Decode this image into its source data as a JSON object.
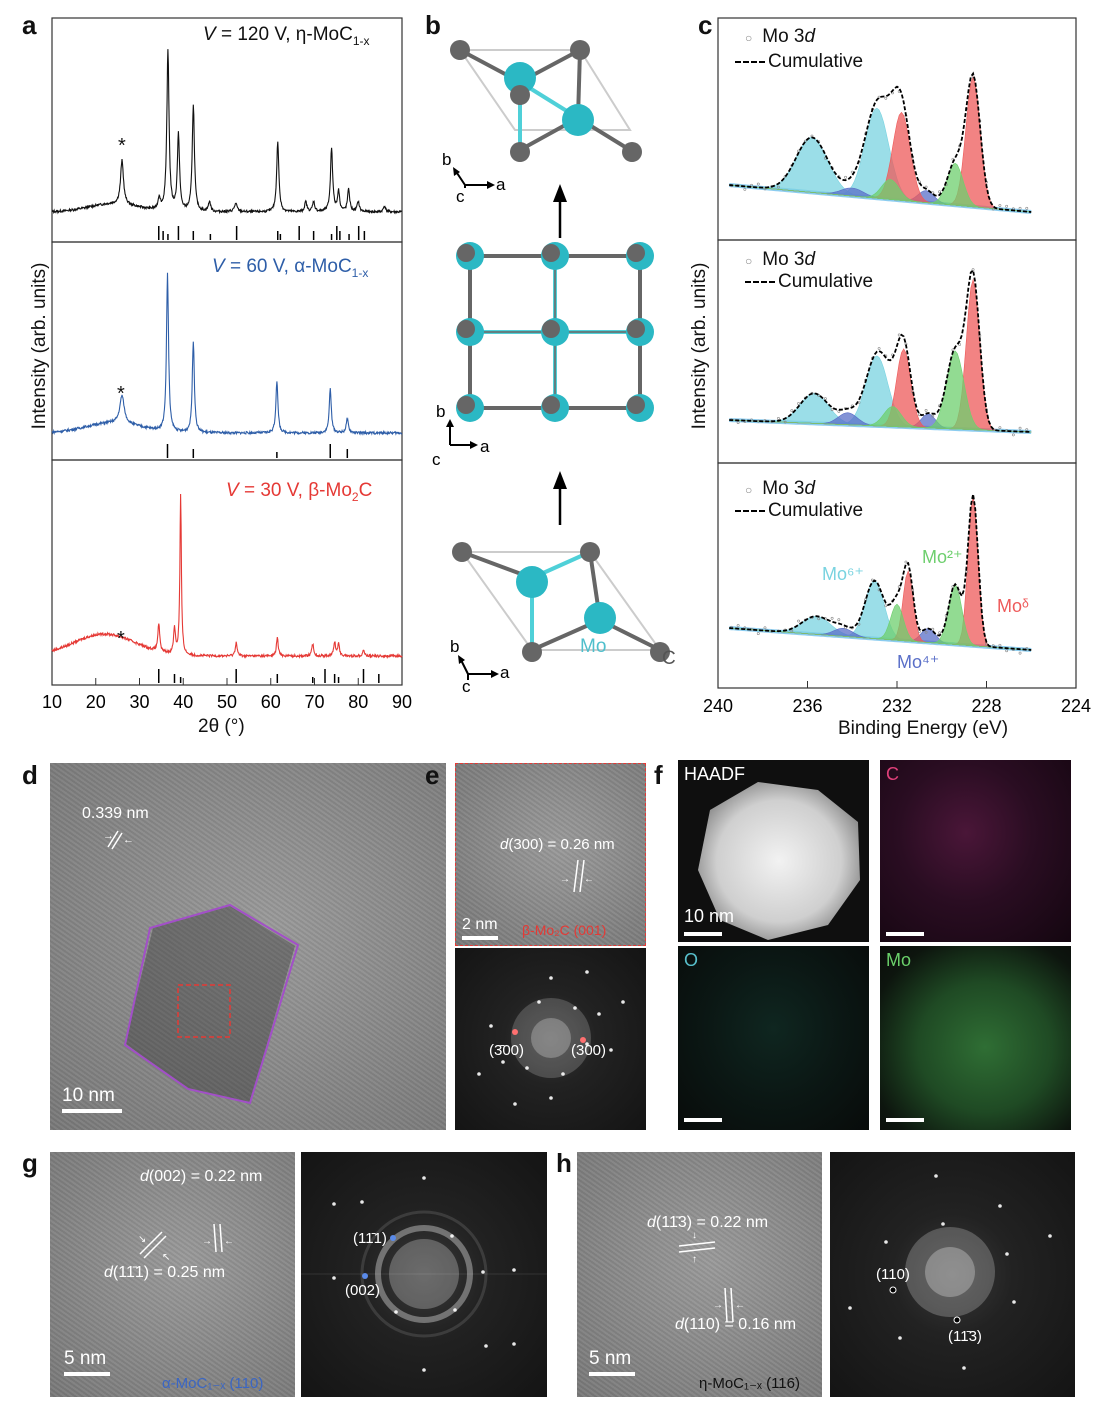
{
  "panels": {
    "a": "a",
    "b": "b",
    "c": "c",
    "d": "d",
    "e": "e",
    "f": "f",
    "g": "g",
    "h": "h"
  },
  "panel_a": {
    "ylabel": "Intensity (arb. units)",
    "xlabel": "2θ (°)",
    "xticks": [
      "10",
      "20",
      "30",
      "40",
      "50",
      "60",
      "70",
      "80",
      "90"
    ],
    "traces": [
      {
        "label_v": "V",
        "label_rest": " = 120 V, η-MoC",
        "sub": "1-x",
        "suffix": "",
        "color": "#111111",
        "star": "*"
      },
      {
        "label_v": "V",
        "label_rest": " = 60 V, α-MoC",
        "sub": "1-x",
        "suffix": "",
        "color": "#2e5ea8",
        "star": "*"
      },
      {
        "label_v": "V",
        "label_rest": " = 30 V, β-Mo",
        "sub": "2",
        "suffix": "C",
        "color": "#e53935",
        "star": "*"
      }
    ]
  },
  "panel_b": {
    "axes_top": {
      "b": "b",
      "c": "c",
      "a": "a"
    },
    "axes_mid": {
      "b": "b",
      "c": "c",
      "a": "a"
    },
    "axes_bot": {
      "b": "b",
      "c": "c",
      "a": "a"
    },
    "mo_label": "Mo",
    "c_label": "C"
  },
  "panel_c": {
    "ylabel": "Intensity (arb. units)",
    "xlabel": "Binding Energy (eV)",
    "xticks": [
      "240",
      "236",
      "232",
      "228",
      "224"
    ],
    "legend_data_prefix": "Mo 3",
    "legend_data_italic": "d",
    "legend_cumulative": "Cumulative",
    "states": {
      "mo6": "Mo⁶⁺",
      "mo2": "Mo²⁺",
      "mod": "Moᵟ",
      "mo4": "Mo⁴⁺"
    }
  },
  "panel_d": {
    "spacing": "0.339 nm",
    "scale": "10 nm"
  },
  "panel_e": {
    "d_prefix": "d",
    "d_rest": "(300) = 0.26 nm",
    "scale": "2 nm",
    "zone": "β-Mo₂C (001)",
    "spot_neg": "(3̄00)",
    "spot_pos": "(300)"
  },
  "panel_f": {
    "haadf": "HAADF",
    "scale": "10 nm",
    "c": "C",
    "o": "O",
    "mo": "Mo"
  },
  "panel_g": {
    "d1_prefix": "d",
    "d1_rest": "(002) = 0.22 nm",
    "d2_prefix": "d",
    "d2_rest": "(11̄1) = 0.25 nm",
    "scale": "5 nm",
    "zone": "α-MoC₁₋ₓ (110)",
    "spot1": "(11̄1)",
    "spot2": "(002)"
  },
  "panel_h": {
    "d1_prefix": "d",
    "d1_rest": "(11̄3) = 0.22 nm",
    "d2_prefix": "d",
    "d2_rest": "(110) = 0.16 nm",
    "scale": "5 nm",
    "zone": "η-MoC₁₋ₓ (116)",
    "spot1": "(110)",
    "spot2": "(11̄3)"
  },
  "colors": {
    "mo_atom": "#2bb8c4",
    "c_atom": "#666666",
    "bond_light": "#4fd0d8",
    "xrd_120": "#111111",
    "xrd_60": "#2e5ea8",
    "xrd_30": "#e53935",
    "mo6": "#79d3e0",
    "mo2": "#6ecf6e",
    "mod": "#ee5a5a",
    "mo4": "#5a6fc8",
    "baseline": "#5ab7e8"
  }
}
